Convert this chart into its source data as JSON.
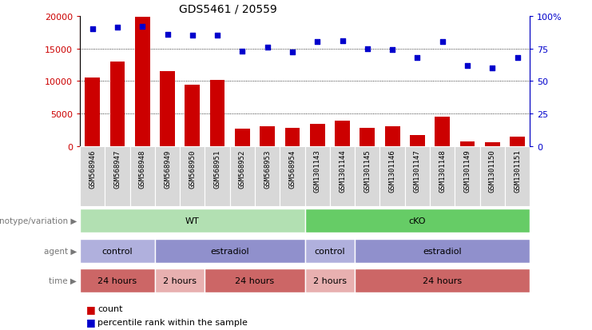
{
  "title": "GDS5461 / 20559",
  "samples": [
    "GSM568946",
    "GSM568947",
    "GSM568948",
    "GSM568949",
    "GSM568950",
    "GSM568951",
    "GSM568952",
    "GSM568953",
    "GSM568954",
    "GSM1301143",
    "GSM1301144",
    "GSM1301145",
    "GSM1301146",
    "GSM1301147",
    "GSM1301148",
    "GSM1301149",
    "GSM1301150",
    "GSM1301151"
  ],
  "counts": [
    10500,
    13000,
    19800,
    11500,
    9400,
    10200,
    2700,
    3100,
    2800,
    3500,
    4000,
    2800,
    3100,
    1800,
    4500,
    800,
    600,
    1500
  ],
  "percentiles": [
    90,
    91,
    92,
    86,
    85,
    85,
    73,
    76,
    72,
    80,
    81,
    75,
    74,
    68,
    80,
    62,
    60,
    68
  ],
  "bar_color": "#cc0000",
  "dot_color": "#0000cc",
  "ylim_left": [
    0,
    20000
  ],
  "ylim_right": [
    0,
    100
  ],
  "yticks_left": [
    0,
    5000,
    10000,
    15000,
    20000
  ],
  "yticks_right": [
    0,
    25,
    50,
    75,
    100
  ],
  "yticklabels_right": [
    "0",
    "25",
    "50",
    "75",
    "100%"
  ],
  "grid_values": [
    5000,
    10000,
    15000
  ],
  "genotype_groups": [
    {
      "label": "WT",
      "start": 0,
      "end": 9,
      "color": "#b2e0b2"
    },
    {
      "label": "cKO",
      "start": 9,
      "end": 18,
      "color": "#66cc66"
    }
  ],
  "agent_groups": [
    {
      "label": "control",
      "start": 0,
      "end": 3,
      "color": "#b0b0dd"
    },
    {
      "label": "estradiol",
      "start": 3,
      "end": 9,
      "color": "#9090cc"
    },
    {
      "label": "control",
      "start": 9,
      "end": 11,
      "color": "#b0b0dd"
    },
    {
      "label": "estradiol",
      "start": 11,
      "end": 18,
      "color": "#9090cc"
    }
  ],
  "time_groups": [
    {
      "label": "24 hours",
      "start": 0,
      "end": 3,
      "color": "#cc6666"
    },
    {
      "label": "2 hours",
      "start": 3,
      "end": 5,
      "color": "#e8b0b0"
    },
    {
      "label": "24 hours",
      "start": 5,
      "end": 9,
      "color": "#cc6666"
    },
    {
      "label": "2 hours",
      "start": 9,
      "end": 11,
      "color": "#e8b0b0"
    },
    {
      "label": "24 hours",
      "start": 11,
      "end": 18,
      "color": "#cc6666"
    }
  ],
  "legend_count_color": "#cc0000",
  "legend_dot_color": "#0000cc"
}
